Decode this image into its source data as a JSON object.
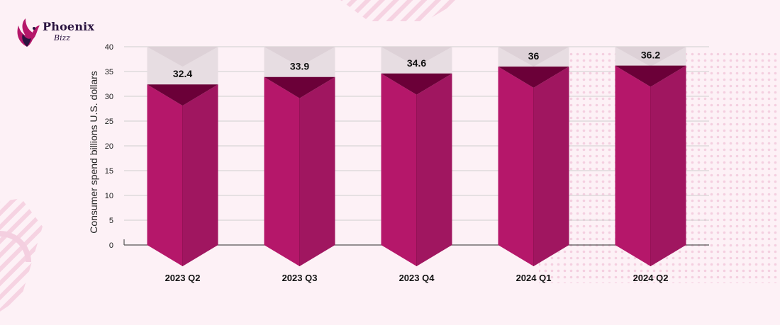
{
  "brand": {
    "name": "Phoenix",
    "sub": "Bizz",
    "logo_icon": "phoenix-bird-icon",
    "colors": {
      "primary": "#b5176a",
      "dark": "#2a1440"
    }
  },
  "chart_data": {
    "type": "bar",
    "categories": [
      "2023 Q2",
      "2023 Q3",
      "2023 Q4",
      "2024 Q1",
      "2024 Q2"
    ],
    "values": [
      32.4,
      33.9,
      34.6,
      36,
      36.2
    ],
    "value_labels": [
      "32.4",
      "33.9",
      "34.6",
      "36",
      "36.2"
    ],
    "title": "",
    "xlabel": "",
    "ylabel": "Consumer spend billions U.S. dollars",
    "ylim": [
      0,
      40
    ],
    "yticks": [
      0,
      5,
      10,
      15,
      20,
      25,
      30,
      35,
      40
    ],
    "ytick_labels": [
      "0",
      "5",
      "10",
      "15",
      "20",
      "25",
      "30",
      "35",
      "40"
    ],
    "grid": true,
    "legend": "none",
    "colors": {
      "bar": "#b5176a",
      "bar_shade": "#a01660",
      "bar_top": "#6b0038",
      "capacity": "#e7dde2",
      "capacity_shade": "#ddd1d7",
      "grid": "#cfcfcf"
    }
  }
}
